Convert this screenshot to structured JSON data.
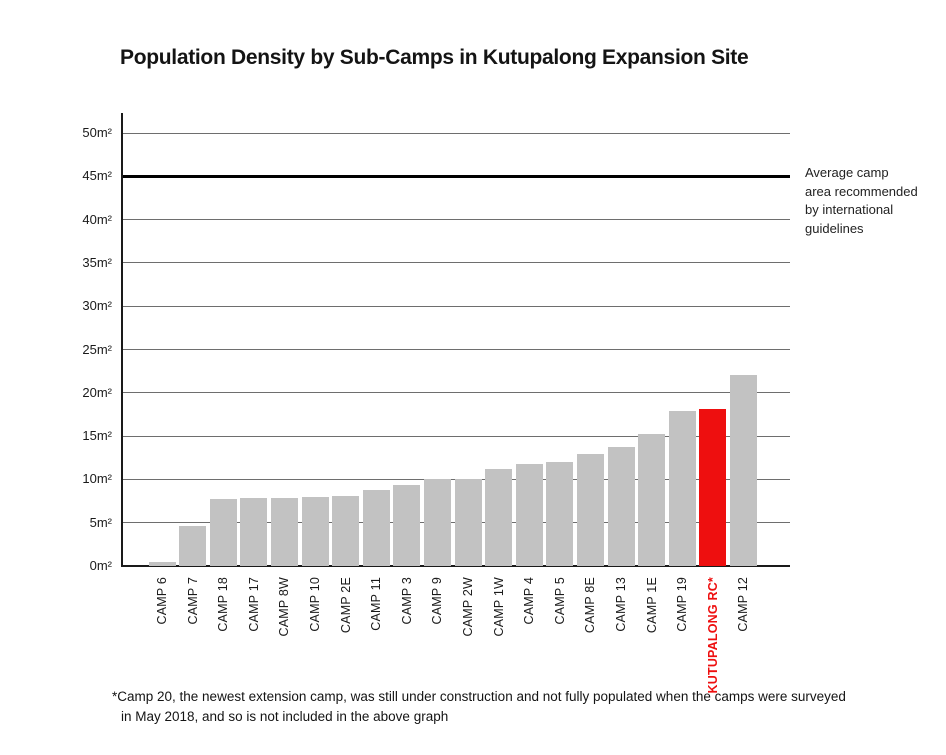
{
  "title": "Population Density by Sub-Camps in Kutupalong Expansion Site",
  "chart_data": {
    "type": "bar",
    "title": "Population Density by Sub-Camps in Kutupalong Expansion Site",
    "categories": [
      "CAMP 6",
      "CAMP 7",
      "CAMP 18",
      "CAMP 17",
      "CAMP 8W",
      "CAMP 10",
      "CAMP 2E",
      "CAMP 11",
      "CAMP 3",
      "CAMP 9",
      "CAMP 2W",
      "CAMP 1W",
      "CAMP 4",
      "CAMP 5",
      "CAMP 8E",
      "CAMP 13",
      "CAMP 1E",
      "CAMP 19",
      "KUTUPALONG RC*",
      "CAMP 12"
    ],
    "values": [
      0.5,
      4.6,
      7.7,
      7.8,
      7.9,
      8.0,
      8.1,
      8.8,
      9.4,
      10.0,
      10.1,
      11.2,
      11.8,
      12.0,
      12.9,
      13.7,
      15.2,
      17.9,
      18.1,
      22.1
    ],
    "unit": "m²",
    "xlabel": "",
    "ylabel": "",
    "ylim": [
      0,
      50
    ],
    "ytick_step": 5,
    "yticks": [
      "0m²",
      "5m²",
      "10m²",
      "15m²",
      "20m²",
      "25m²",
      "30m²",
      "35m²",
      "40m²",
      "45m²",
      "50m²"
    ],
    "grid": true,
    "legend": "none",
    "bar_color": "#c2c2c2",
    "highlight_category": "KUTUPALONG RC*",
    "highlight_color": "#ee0f0f",
    "gridline_color": "#6e6e6e",
    "axis_color": "#000000",
    "reference_line": {
      "value": 45,
      "color": "#000000",
      "label": "Average camp area recommended by international guidelines"
    }
  },
  "annotation": {
    "lines": [
      "Average camp",
      "area recommended",
      "by international",
      "guidelines"
    ]
  },
  "footnote": {
    "line1": "*Camp 20, the newest extension camp, was still under construction and not fully populated when the camps were surveyed",
    "line2": "in May 2018, and so is not included in the above graph"
  }
}
